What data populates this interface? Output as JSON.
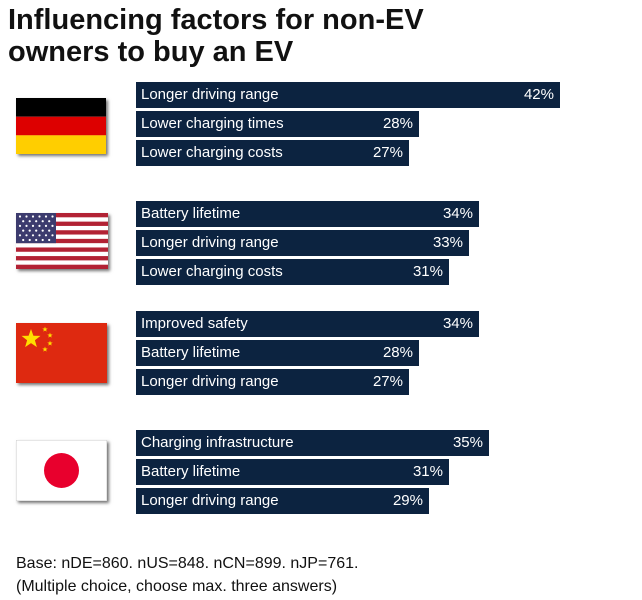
{
  "title": {
    "line1": "Influencing factors for non-EV",
    "line2": "owners to buy an EV"
  },
  "chart_data": {
    "type": "bar",
    "orientation": "horizontal",
    "title": "Influencing factors for non-EV owners to buy an EV",
    "unit": "%",
    "xlim": [
      0,
      42
    ],
    "groups": [
      {
        "country": "DE",
        "flag": "germany-flag",
        "categories": [
          "Longer driving range",
          "Lower charging times",
          "Lower charging costs"
        ],
        "values": [
          42,
          28,
          27
        ],
        "labels": [
          "42%",
          "28%",
          "27%"
        ]
      },
      {
        "country": "US",
        "flag": "usa-flag",
        "categories": [
          "Battery lifetime",
          "Longer driving range",
          "Lower charging costs"
        ],
        "values": [
          34,
          33,
          31
        ],
        "labels": [
          "34%",
          "33%",
          "31%"
        ]
      },
      {
        "country": "CN",
        "flag": "china-flag",
        "categories": [
          "Improved safety",
          "Battery lifetime",
          "Longer driving range"
        ],
        "values": [
          34,
          28,
          27
        ],
        "labels": [
          "34%",
          "28%",
          "27%"
        ]
      },
      {
        "country": "JP",
        "flag": "japan-flag",
        "categories": [
          "Charging infrastructure",
          "Battery lifetime",
          "Longer driving range"
        ],
        "values": [
          35,
          31,
          29
        ],
        "labels": [
          "35%",
          "31%",
          "29%"
        ]
      }
    ]
  },
  "footnote": {
    "line1": "Base: nDE=860. nUS=848. nCN=899. nJP=761.",
    "line2": "(Multiple choice, choose max. three answers)"
  },
  "colors": {
    "bar": "#0c2340",
    "bar_text": "#ffffff",
    "germany": [
      "#000000",
      "#dd0000",
      "#ffce00"
    ],
    "usa": [
      "#b22234",
      "#ffffff",
      "#3c3b6e"
    ],
    "china": [
      "#de2910",
      "#ffde00"
    ],
    "japan": [
      "#ffffff",
      "#bc002d"
    ]
  }
}
